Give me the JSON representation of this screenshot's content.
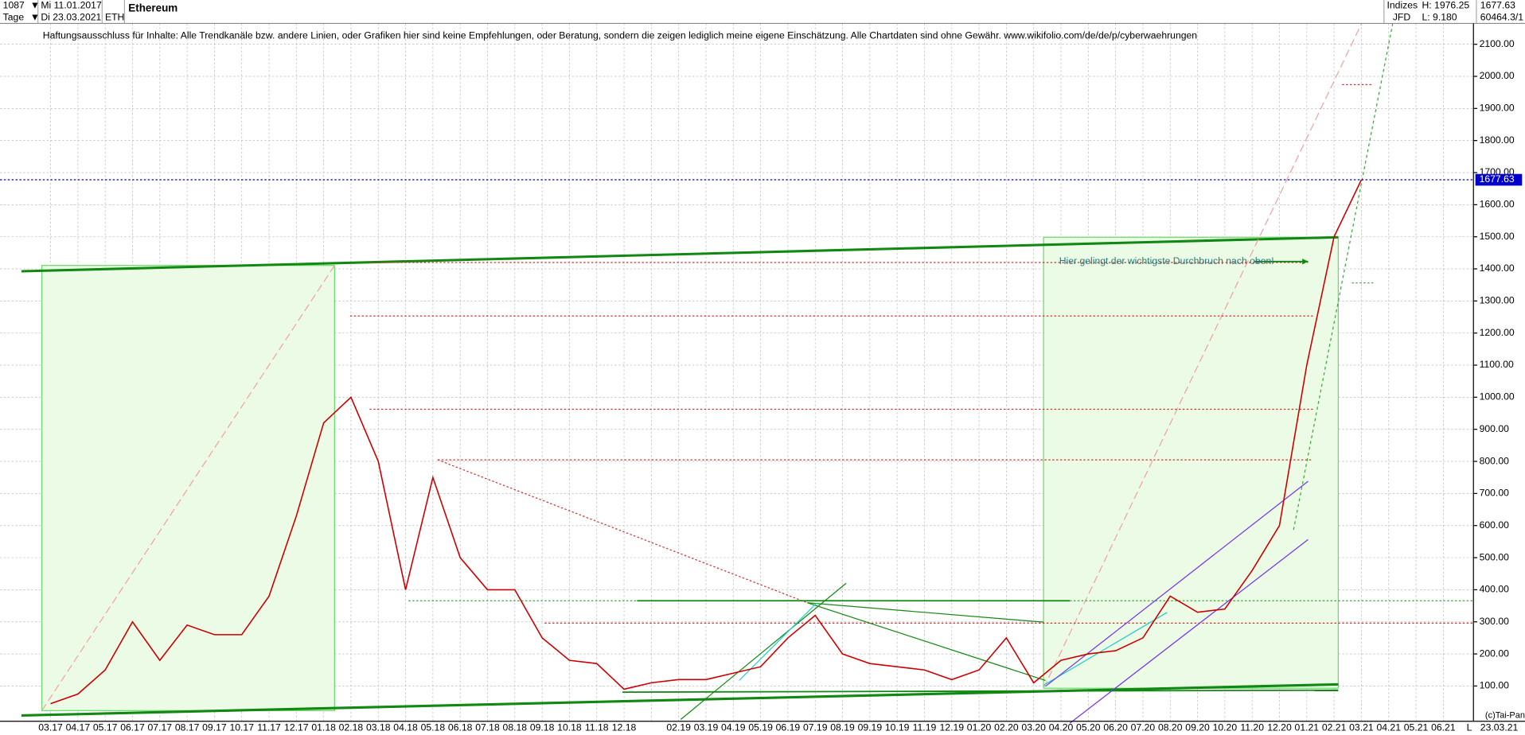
{
  "header": {
    "count": "1087",
    "start": "Mi 11.01.2017",
    "period": "Tage",
    "end": "Di 23.03.2021",
    "symbol": "ETH",
    "name": "Ethereum",
    "group": "Indizes",
    "broker": "JFD",
    "high": "H: 1976.25",
    "low": "L: 9.180",
    "last": "1677.63",
    "volume": "60464.3/1"
  },
  "chart_data": {
    "type": "line",
    "subtitle": "Haftungsausschluss für Inhalte: Alle Trendkanäle bzw. andere Linien, oder Grafiken hier sind keine Empfehlungen, oder Beratung, sondern die zeigen lediglich meine eigene Einschätzung. Alle Chartdaten sind ohne Gewähr.  www.wikifolio.com/de/de/p/cyberwaehrungen",
    "annotation": "Hier gelingt der wichtigste Durchbruch nach oben!",
    "last_price": 1677.63,
    "last_price_label": "1677.63",
    "end_date": "23.03.21",
    "axis_marker": "L",
    "credit": "(c)Tai-Pan",
    "categories": [
      "03.17",
      "04.17",
      "05.17",
      "06.17",
      "07.17",
      "08.17",
      "09.17",
      "10.17",
      "11.17",
      "12.17",
      "01.18",
      "02.18",
      "03.18",
      "04.18",
      "05.18",
      "06.18",
      "07.18",
      "08.18",
      "09.18",
      "10.18",
      "11.18",
      "12.18",
      null,
      "02.19",
      "03.19",
      "04.19",
      "05.19",
      "06.19",
      "07.19",
      "08.19",
      "09.19",
      "10.19",
      "11.19",
      "12.19",
      "01.20",
      "02.20",
      "03.20",
      "04.20",
      "05.20",
      "06.20",
      "07.20",
      "08.20",
      "09.20",
      "10.20",
      "11.20",
      "12.20",
      "01.21",
      "02.21",
      "03.21",
      "04.21",
      "05.21",
      "06.21"
    ],
    "series": [
      {
        "name": "Ethereum",
        "color": "#cc0000",
        "values": [
          45,
          75,
          150,
          300,
          180,
          290,
          260,
          260,
          380,
          630,
          920,
          1000,
          800,
          400,
          750,
          500,
          400,
          400,
          250,
          180,
          170,
          90,
          110,
          120,
          120,
          140,
          160,
          250,
          320,
          200,
          170,
          160,
          150,
          120,
          150,
          250,
          110,
          180,
          200,
          210,
          250,
          380,
          330,
          340,
          460,
          600,
          1100,
          1500,
          1677.63,
          null,
          null,
          null
        ]
      }
    ],
    "ylim": [
      -10,
      2165
    ],
    "yticks": [
      {
        "value": 100,
        "label": "100.00"
      },
      {
        "value": 200,
        "label": "200.00"
      },
      {
        "value": 300,
        "label": "300.00"
      },
      {
        "value": 400,
        "label": "400.00"
      },
      {
        "value": 500,
        "label": "500.00"
      },
      {
        "value": 600,
        "label": "600.00"
      },
      {
        "value": 700,
        "label": "700.00"
      },
      {
        "value": 800,
        "label": "800.00"
      },
      {
        "value": 900,
        "label": "900.00"
      },
      {
        "value": 1000,
        "label": "1000.00"
      },
      {
        "value": 1100,
        "label": "1100.00"
      },
      {
        "value": 1200,
        "label": "1200.00"
      },
      {
        "value": 1300,
        "label": "1300.00"
      },
      {
        "value": 1400,
        "label": "1400.00"
      },
      {
        "value": 1500,
        "label": "1500.00"
      },
      {
        "value": 1600,
        "label": "1600.00"
      },
      {
        "value": 1700,
        "label": "1700.00"
      },
      {
        "value": 1800,
        "label": "1800.00"
      },
      {
        "value": 1900,
        "label": "1900.00"
      },
      {
        "value": 2000,
        "label": "2000.00"
      },
      {
        "value": 2100,
        "label": "2100.00"
      }
    ],
    "grid": true
  }
}
